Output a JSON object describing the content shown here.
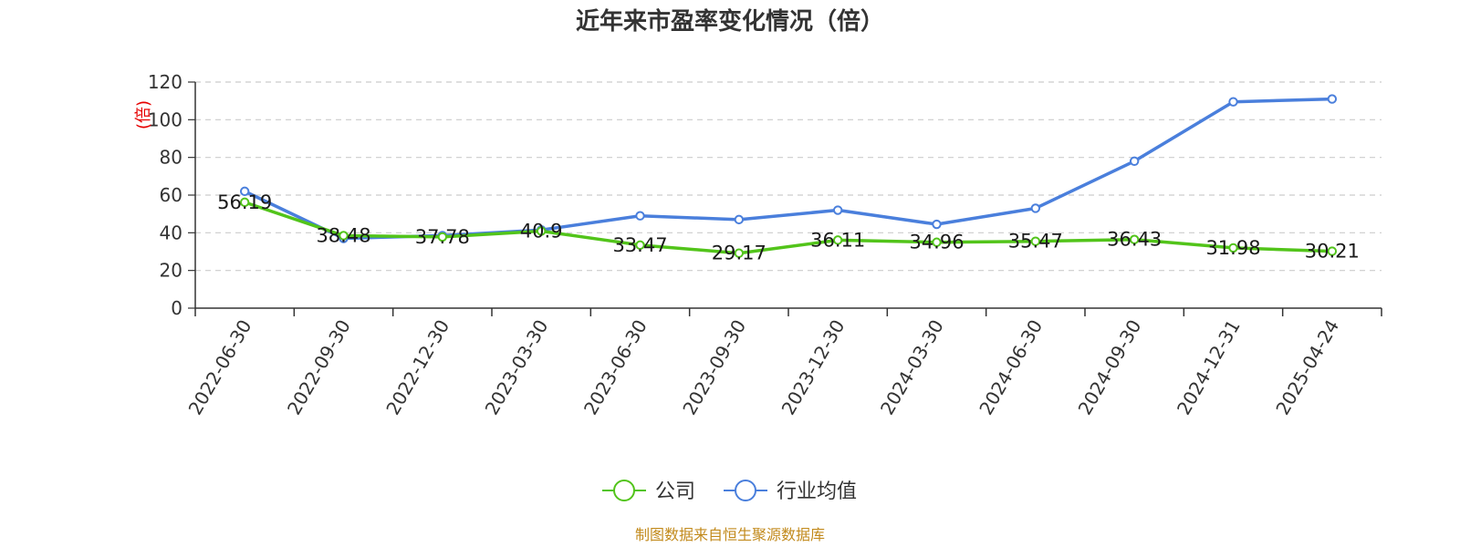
{
  "chart_data": {
    "type": "line",
    "title": "近年来市盈率变化情况（倍）",
    "ylabel": "(倍)",
    "xlabel": "",
    "categories": [
      "2022-06-30",
      "2022-09-30",
      "2022-12-30",
      "2023-03-30",
      "2023-06-30",
      "2023-09-30",
      "2023-12-30",
      "2024-03-30",
      "2024-06-30",
      "2024-09-30",
      "2024-12-31",
      "2025-04-24"
    ],
    "ylim": [
      0,
      120
    ],
    "yticks": [
      "0",
      "20",
      "40",
      "60",
      "80",
      "100",
      "120"
    ],
    "grid": true,
    "legend_position": "bottom",
    "series": [
      {
        "name": "公司",
        "color": "#52c41a",
        "values": [
          56.19,
          38.48,
          37.78,
          40.9,
          33.47,
          29.17,
          36.11,
          34.96,
          35.47,
          36.43,
          31.98,
          30.21
        ],
        "labels": [
          "56.19",
          "38.48",
          "37.78",
          "40.9",
          "33.47",
          "29.17",
          "36.11",
          "34.96",
          "35.47",
          "36.43",
          "31.98",
          "30.21"
        ]
      },
      {
        "name": "行业均值",
        "color": "#4a7fdc",
        "values": [
          62.0,
          37.0,
          38.5,
          41.5,
          49.0,
          47.0,
          52.0,
          44.5,
          53.0,
          78.0,
          109.5,
          111.0
        ]
      }
    ]
  },
  "footer": {
    "source": "制图数据来自恒生聚源数据库"
  }
}
